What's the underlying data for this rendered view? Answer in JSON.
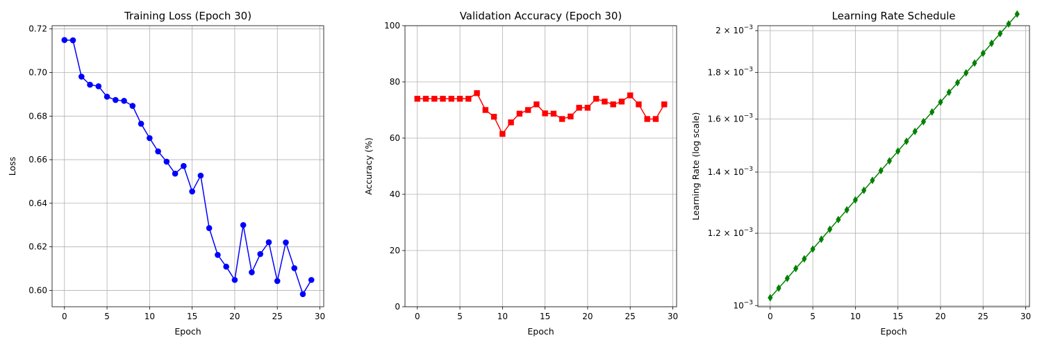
{
  "chart_data": [
    {
      "type": "line",
      "title": "Training Loss (Epoch 30)",
      "xlabel": "Epoch",
      "ylabel": "Loss",
      "xlim": [
        -1.45,
        30.45
      ],
      "ylim": [
        0.5925,
        0.7215
      ],
      "xticks": [
        0,
        5,
        10,
        15,
        20,
        25,
        30
      ],
      "yticks": [
        0.6,
        0.62,
        0.64,
        0.66,
        0.68,
        0.7,
        0.72
      ],
      "ytick_labels": [
        "0.60",
        "0.62",
        "0.64",
        "0.66",
        "0.68",
        "0.70",
        "0.72"
      ],
      "grid": true,
      "series": [
        {
          "color": "#0000ff",
          "marker": "circle",
          "x": [
            0,
            1,
            2,
            3,
            4,
            5,
            6,
            7,
            8,
            9,
            10,
            11,
            12,
            13,
            14,
            15,
            16,
            17,
            18,
            19,
            20,
            21,
            22,
            23,
            24,
            25,
            26,
            27,
            28,
            29
          ],
          "values": [
            0.7149,
            0.7148,
            0.6981,
            0.6944,
            0.6937,
            0.6889,
            0.6874,
            0.687,
            0.6847,
            0.6765,
            0.6699,
            0.6638,
            0.6591,
            0.6536,
            0.6571,
            0.6454,
            0.6527,
            0.6286,
            0.6163,
            0.6109,
            0.6048,
            0.63,
            0.6083,
            0.6167,
            0.6221,
            0.6043,
            0.622,
            0.6102,
            0.5983,
            0.6048
          ]
        }
      ]
    },
    {
      "type": "line",
      "title": "Validation Accuracy (Epoch 30)",
      "xlabel": "Epoch",
      "ylabel": "Accuracy (%)",
      "xlim": [
        -1.45,
        30.45
      ],
      "ylim": [
        0,
        100
      ],
      "xticks": [
        0,
        5,
        10,
        15,
        20,
        25,
        30
      ],
      "yticks": [
        0,
        20,
        40,
        60,
        80,
        100
      ],
      "ytick_labels": [
        "0",
        "20",
        "40",
        "60",
        "80",
        "100"
      ],
      "grid": true,
      "series": [
        {
          "color": "#ff0000",
          "marker": "square",
          "x": [
            0,
            1,
            2,
            3,
            4,
            5,
            6,
            7,
            8,
            9,
            10,
            11,
            12,
            13,
            14,
            15,
            16,
            17,
            18,
            19,
            20,
            21,
            22,
            23,
            24,
            25,
            26,
            27,
            28,
            29
          ],
          "values": [
            74.0,
            74.0,
            74.0,
            74.0,
            74.0,
            74.0,
            74.0,
            76.0,
            70.0,
            67.6,
            61.5,
            65.6,
            68.7,
            70.0,
            72.0,
            68.8,
            68.7,
            66.8,
            67.7,
            70.8,
            70.8,
            74.0,
            73.0,
            72.0,
            73.0,
            75.2,
            72.0,
            66.8,
            66.8,
            72.0
          ]
        }
      ]
    },
    {
      "type": "line",
      "title": "Learning Rate Schedule",
      "xlabel": "Epoch",
      "ylabel": "Learning Rate (log scale)",
      "yscale": "log",
      "xlim": [
        -1.45,
        30.45
      ],
      "ylim": [
        0.000997,
        0.002025
      ],
      "xticks": [
        0,
        5,
        10,
        15,
        20,
        25,
        30
      ],
      "yticks": [
        0.001,
        0.0012,
        0.0014,
        0.0016,
        0.0018,
        0.002
      ],
      "ytick_labels": [
        {
          "mantissa": "",
          "base": "10",
          "exp": "−3"
        },
        {
          "mantissa": "1.2 × ",
          "base": "10",
          "exp": "−3"
        },
        {
          "mantissa": "1.4 × ",
          "base": "10",
          "exp": "−3"
        },
        {
          "mantissa": "1.6 × ",
          "base": "10",
          "exp": "−3"
        },
        {
          "mantissa": "1.8 × ",
          "base": "10",
          "exp": "−3"
        },
        {
          "mantissa": "2 × ",
          "base": "10",
          "exp": "−3"
        }
      ],
      "grid": true,
      "series": [
        {
          "color": "#008000",
          "marker": "diamond",
          "x": [
            0,
            1,
            2,
            3,
            4,
            5,
            6,
            7,
            8,
            9,
            10,
            11,
            12,
            13,
            14,
            15,
            16,
            17,
            18,
            19,
            20,
            21,
            22,
            23,
            24,
            25,
            26,
            27,
            28,
            29
          ],
          "values": [
            0.00102,
            0.001045,
            0.001071,
            0.001098,
            0.001125,
            0.001153,
            0.001182,
            0.001212,
            0.001242,
            0.001273,
            0.001305,
            0.001337,
            0.001371,
            0.001405,
            0.00144,
            0.001476,
            0.001513,
            0.001551,
            0.00159,
            0.001629,
            0.00167,
            0.001712,
            0.001754,
            0.001798,
            0.001843,
            0.001889,
            0.001937,
            0.001985,
            0.002034,
            0.002085
          ]
        }
      ]
    }
  ]
}
